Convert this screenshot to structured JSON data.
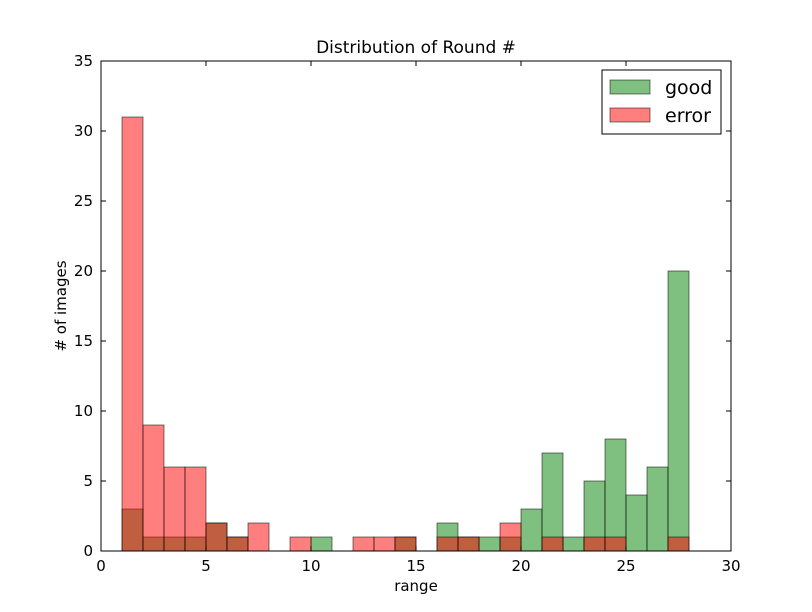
{
  "chart_data": {
    "type": "bar",
    "title": "Distribution of Round #",
    "xlabel": "range",
    "ylabel": "# of images",
    "xlim": [
      0,
      30
    ],
    "ylim": [
      0,
      35
    ],
    "xticks": [
      0,
      5,
      10,
      15,
      20,
      25,
      30
    ],
    "yticks": [
      0,
      5,
      10,
      15,
      20,
      25,
      30,
      35
    ],
    "grid": false,
    "legend_position": "top-right",
    "bin_edges": [
      1,
      2,
      3,
      4,
      5,
      6,
      7,
      8,
      9,
      10,
      11,
      12,
      13,
      14,
      15,
      16,
      17,
      18,
      19,
      20,
      21,
      22,
      23,
      24,
      25,
      26,
      27,
      28
    ],
    "series": [
      {
        "name": "good",
        "color": "#008000",
        "values": [
          3,
          1,
          1,
          1,
          2,
          1,
          0,
          0,
          0,
          1,
          0,
          0,
          0,
          1,
          0,
          2,
          1,
          1,
          1,
          3,
          7,
          1,
          5,
          8,
          4,
          6,
          20
        ]
      },
      {
        "name": "error",
        "color": "#ff0000",
        "values": [
          31,
          9,
          6,
          6,
          2,
          1,
          2,
          0,
          1,
          0,
          0,
          1,
          1,
          1,
          0,
          1,
          1,
          0,
          2,
          0,
          1,
          0,
          1,
          1,
          0,
          0,
          1
        ]
      }
    ]
  }
}
